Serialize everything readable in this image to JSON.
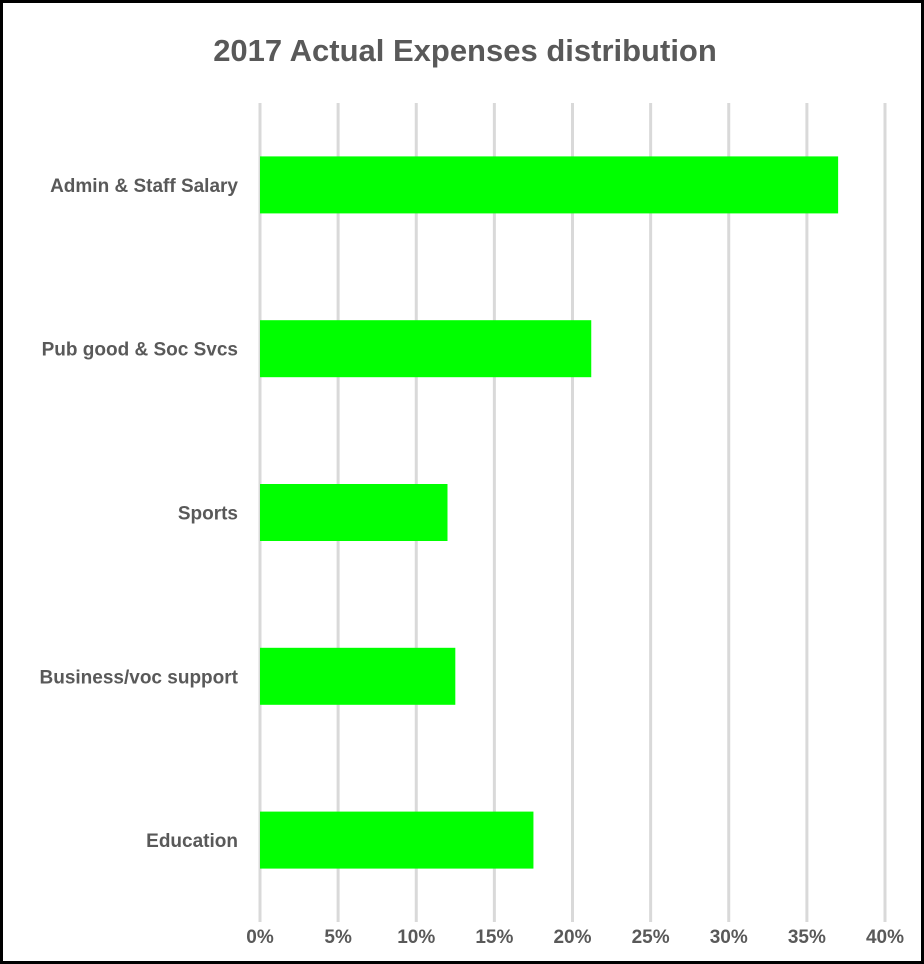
{
  "chart_data": {
    "type": "bar",
    "orientation": "horizontal",
    "title": "2017 Actual Expenses distribution",
    "xlabel": "",
    "ylabel": "",
    "categories": [
      "Admin & Staff Salary",
      "Pub good & Soc Svcs",
      "Sports",
      "Business/voc support",
      "Education"
    ],
    "values": [
      37.0,
      21.2,
      12.0,
      12.5,
      17.5
    ],
    "value_unit": "%",
    "xlim": [
      0,
      40
    ],
    "ticks": [
      "0%",
      "5%",
      "10%",
      "15%",
      "20%",
      "25%",
      "30%",
      "35%",
      "40%"
    ],
    "tick_values": [
      0,
      5,
      10,
      15,
      20,
      25,
      30,
      35,
      40
    ],
    "grid": "vertical",
    "legend": "none",
    "colors": {
      "bar": "#00FF00",
      "grid": "#D9D9D9",
      "text": "#595959",
      "border": "#000000"
    }
  }
}
